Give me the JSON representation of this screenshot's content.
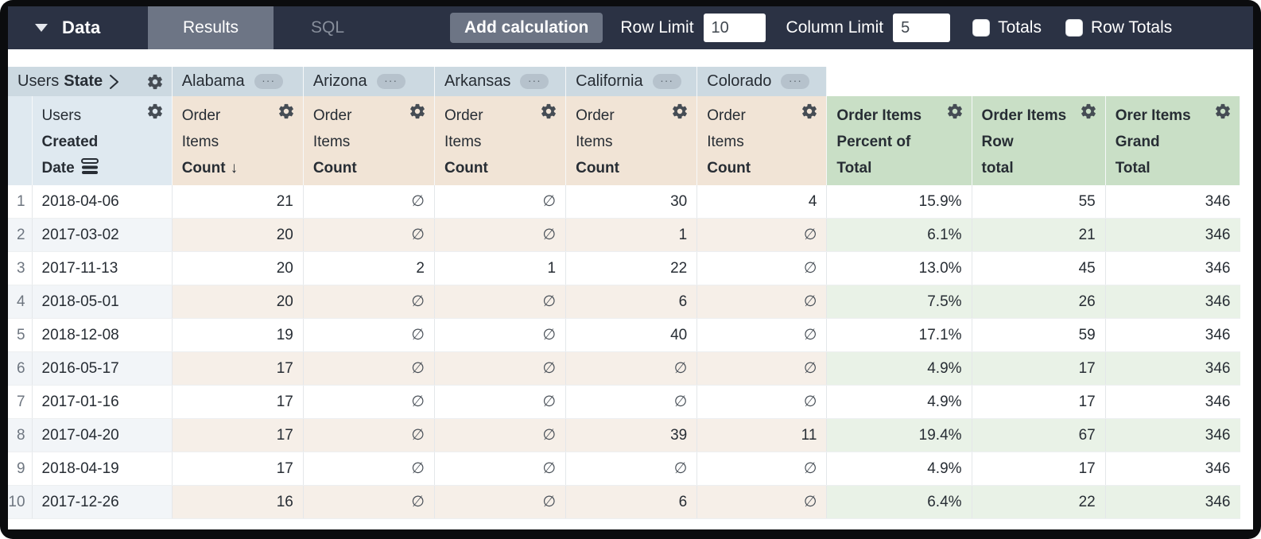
{
  "toolbar": {
    "data_label": "Data",
    "tabs": [
      {
        "label": "Results",
        "active": true
      },
      {
        "label": "SQL",
        "active": false
      }
    ],
    "add_calculation_label": "Add calculation",
    "row_limit_label": "Row Limit",
    "row_limit_value": "10",
    "column_limit_label": "Column Limit",
    "column_limit_value": "5",
    "totals_label": "Totals",
    "totals_checked": false,
    "row_totals_label": "Row Totals",
    "row_totals_checked": false
  },
  "table": {
    "pivot_header": {
      "view": "Users",
      "field": "State",
      "states": [
        "Alabama",
        "Arizona",
        "Arkansas",
        "California",
        "Colorado"
      ]
    },
    "row_dimension": {
      "view": "Users",
      "field_line1": "Created",
      "field_line2": "Date"
    },
    "measure": {
      "view_line1": "Order",
      "view_line2": "Items",
      "field": "Count",
      "sort_arrow": "↓"
    },
    "calc_columns": [
      {
        "line1": "Order Items",
        "line2": "Percent of",
        "line3": "Total"
      },
      {
        "line1": "Order Items",
        "line2": "Row",
        "line3": "total"
      },
      {
        "line1": "Orer Items",
        "line2": "Grand",
        "line3": "Total"
      }
    ],
    "null_symbol": "∅",
    "rows": [
      {
        "num": "1",
        "date": "2018-04-06",
        "values": [
          "21",
          "∅",
          "∅",
          "30",
          "4"
        ],
        "percent_of_total": "15.9%",
        "row_total": "55",
        "grand_total": "346"
      },
      {
        "num": "2",
        "date": "2017-03-02",
        "values": [
          "20",
          "∅",
          "∅",
          "1",
          "∅"
        ],
        "percent_of_total": "6.1%",
        "row_total": "21",
        "grand_total": "346"
      },
      {
        "num": "3",
        "date": "2017-11-13",
        "values": [
          "20",
          "2",
          "1",
          "22",
          "∅"
        ],
        "percent_of_total": "13.0%",
        "row_total": "45",
        "grand_total": "346"
      },
      {
        "num": "4",
        "date": "2018-05-01",
        "values": [
          "20",
          "∅",
          "∅",
          "6",
          "∅"
        ],
        "percent_of_total": "7.5%",
        "row_total": "26",
        "grand_total": "346"
      },
      {
        "num": "5",
        "date": "2018-12-08",
        "values": [
          "19",
          "∅",
          "∅",
          "40",
          "∅"
        ],
        "percent_of_total": "17.1%",
        "row_total": "59",
        "grand_total": "346"
      },
      {
        "num": "6",
        "date": "2016-05-17",
        "values": [
          "17",
          "∅",
          "∅",
          "∅",
          "∅"
        ],
        "percent_of_total": "4.9%",
        "row_total": "17",
        "grand_total": "346"
      },
      {
        "num": "7",
        "date": "2017-01-16",
        "values": [
          "17",
          "∅",
          "∅",
          "∅",
          "∅"
        ],
        "percent_of_total": "4.9%",
        "row_total": "17",
        "grand_total": "346"
      },
      {
        "num": "8",
        "date": "2017-04-20",
        "values": [
          "17",
          "∅",
          "∅",
          "39",
          "11"
        ],
        "percent_of_total": "19.4%",
        "row_total": "67",
        "grand_total": "346"
      },
      {
        "num": "9",
        "date": "2018-04-19",
        "values": [
          "17",
          "∅",
          "∅",
          "∅",
          "∅"
        ],
        "percent_of_total": "4.9%",
        "row_total": "17",
        "grand_total": "346"
      },
      {
        "num": "10",
        "date": "2017-12-26",
        "values": [
          "16",
          "∅",
          "∅",
          "6",
          "∅"
        ],
        "percent_of_total": "6.4%",
        "row_total": "22",
        "grand_total": "346"
      }
    ]
  },
  "icons": {
    "more_options": "···"
  },
  "colors": {
    "toolbar_bg": "#2b3244",
    "active_tab_bg": "#6d7585",
    "pivot_header_bg": "#ccd9e1",
    "dimension_header_bg": "#dfe9f0",
    "measure_header_bg": "#f1e4d6",
    "calc_header_bg": "#c9dfc6",
    "row_tint_frozen": "#f2f5f8",
    "row_tint_measure": "#f6efe8",
    "row_tint_calc": "#e9f2e7"
  }
}
